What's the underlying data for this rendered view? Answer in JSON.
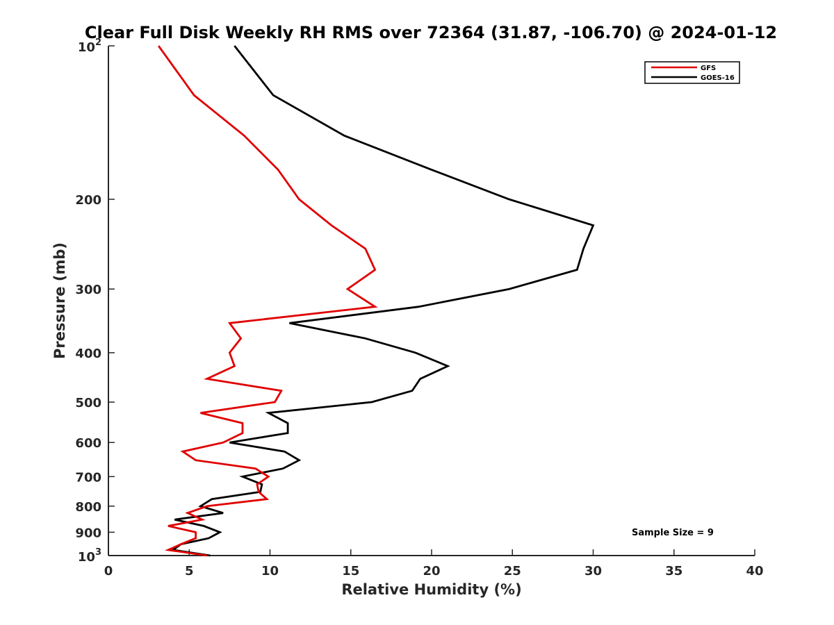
{
  "chart_data": {
    "type": "line",
    "title": "Clear Full Disk Weekly RH RMS over 72364 (31.87, -106.70) @ 2024-01-12",
    "xlabel": "Relative Humidity (%)",
    "ylabel": "Pressure (mb)",
    "xlim": [
      0,
      40
    ],
    "ylim": [
      100,
      1000
    ],
    "yscale": "log",
    "y_reversed": true,
    "grid": false,
    "legend_position": "top-right",
    "x_ticks": [
      "0",
      "5",
      "10",
      "15",
      "20",
      "25",
      "30",
      "35",
      "40"
    ],
    "y_ticks": [
      {
        "value": 100,
        "base": "10",
        "exp": "2"
      },
      {
        "value": 200,
        "label": "200"
      },
      {
        "value": 300,
        "label": "300"
      },
      {
        "value": 400,
        "label": "400"
      },
      {
        "value": 500,
        "label": "500"
      },
      {
        "value": 600,
        "label": "600"
      },
      {
        "value": 700,
        "label": "700"
      },
      {
        "value": 800,
        "label": "800"
      },
      {
        "value": 900,
        "label": "900"
      },
      {
        "value": 1000,
        "base": "10",
        "exp": "3"
      }
    ],
    "annotation": "Sample Size = 9",
    "series": [
      {
        "name": "GFS",
        "color": "#e00000",
        "points": [
          [
            3.1,
            100
          ],
          [
            5.3,
            125
          ],
          [
            8.4,
            150
          ],
          [
            10.5,
            175
          ],
          [
            11.8,
            200
          ],
          [
            13.8,
            225
          ],
          [
            15.9,
            250
          ],
          [
            16.5,
            275
          ],
          [
            14.8,
            300
          ],
          [
            16.5,
            325
          ],
          [
            7.5,
            350
          ],
          [
            8.2,
            375
          ],
          [
            7.5,
            400
          ],
          [
            7.8,
            425
          ],
          [
            6.1,
            450
          ],
          [
            10.7,
            475
          ],
          [
            10.3,
            500
          ],
          [
            5.7,
            525
          ],
          [
            8.3,
            550
          ],
          [
            8.3,
            575
          ],
          [
            7.1,
            600
          ],
          [
            4.6,
            625
          ],
          [
            5.4,
            650
          ],
          [
            9.1,
            675
          ],
          [
            9.9,
            700
          ],
          [
            9.2,
            725
          ],
          [
            9.3,
            750
          ],
          [
            9.8,
            775
          ],
          [
            6.1,
            800
          ],
          [
            4.9,
            825
          ],
          [
            5.8,
            850
          ],
          [
            3.7,
            875
          ],
          [
            5.4,
            900
          ],
          [
            5.4,
            925
          ],
          [
            4.5,
            950
          ],
          [
            3.7,
            975
          ],
          [
            6.1,
            1000
          ]
        ]
      },
      {
        "name": "GOES-16",
        "color": "#000000",
        "points": [
          [
            7.8,
            100
          ],
          [
            10.2,
            125
          ],
          [
            14.6,
            150
          ],
          [
            20.0,
            175
          ],
          [
            24.8,
            200
          ],
          [
            30.0,
            225
          ],
          [
            29.4,
            250
          ],
          [
            29.0,
            275
          ],
          [
            24.8,
            300
          ],
          [
            19.2,
            325
          ],
          [
            11.2,
            350
          ],
          [
            15.9,
            375
          ],
          [
            19.0,
            400
          ],
          [
            21.0,
            425
          ],
          [
            19.3,
            450
          ],
          [
            18.8,
            475
          ],
          [
            16.3,
            500
          ],
          [
            9.9,
            525
          ],
          [
            11.1,
            550
          ],
          [
            11.1,
            575
          ],
          [
            7.5,
            600
          ],
          [
            10.9,
            625
          ],
          [
            11.8,
            650
          ],
          [
            10.8,
            675
          ],
          [
            8.3,
            700
          ],
          [
            9.5,
            725
          ],
          [
            9.4,
            750
          ],
          [
            6.4,
            775
          ],
          [
            5.7,
            800
          ],
          [
            7.1,
            825
          ],
          [
            4.1,
            850
          ],
          [
            5.9,
            875
          ],
          [
            6.9,
            900
          ],
          [
            6.2,
            925
          ],
          [
            4.5,
            950
          ],
          [
            4.0,
            975
          ],
          [
            6.3,
            1000
          ]
        ]
      }
    ]
  }
}
